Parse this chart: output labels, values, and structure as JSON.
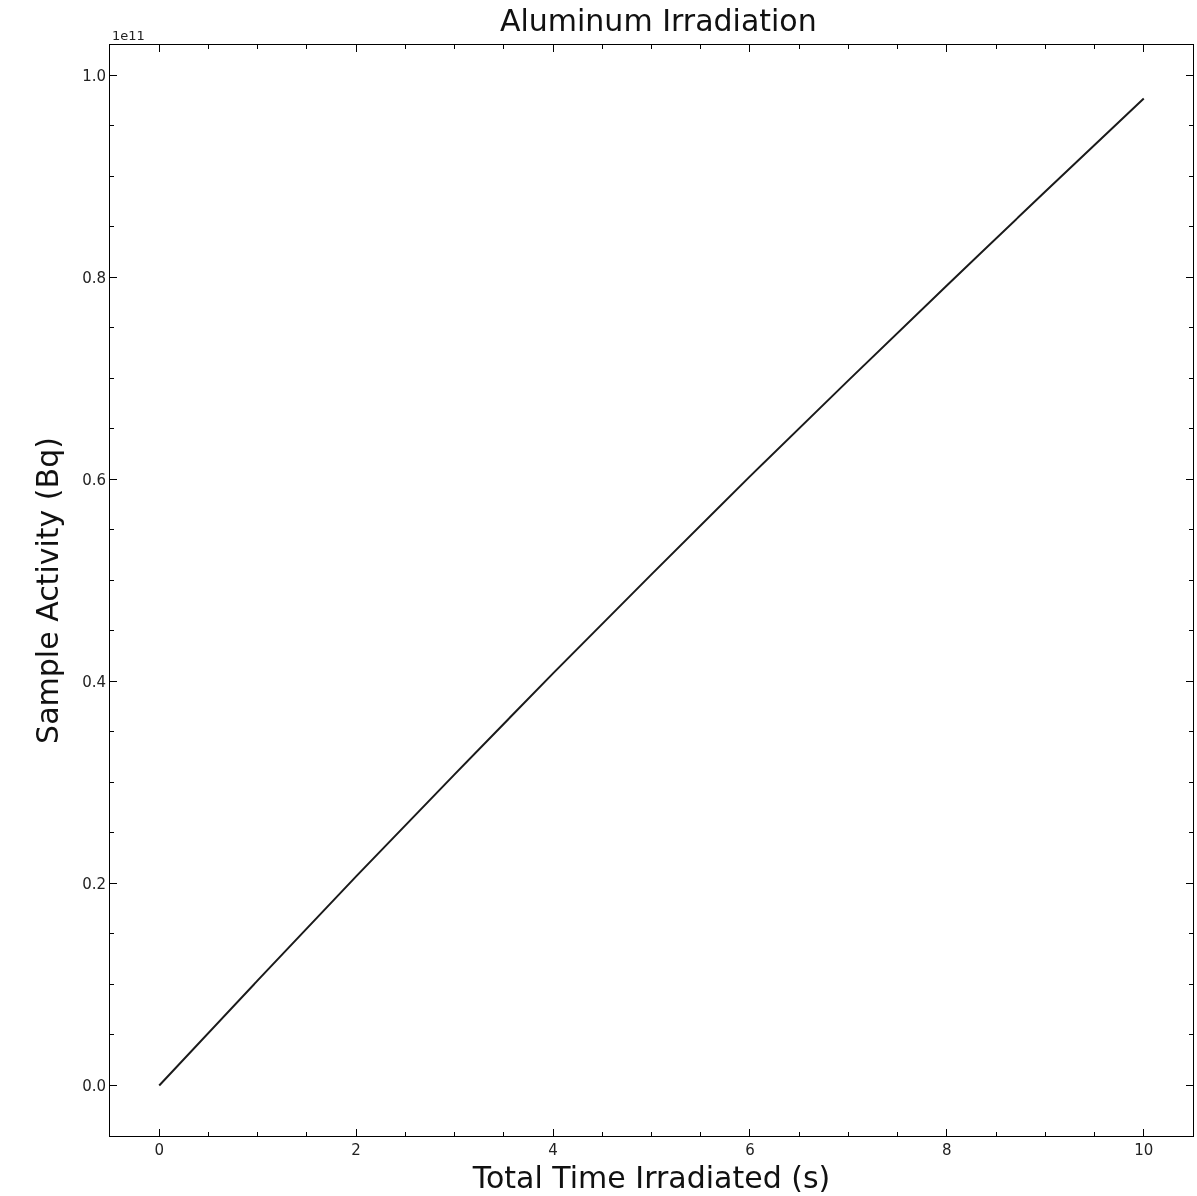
{
  "chart_data": {
    "type": "line",
    "title": "Aluminum Irradiation",
    "xlabel": "Total Time Irradiated (s)",
    "ylabel": "Sample Activity (Bq)",
    "annotations": [
      "1e11"
    ],
    "x": [
      0,
      1,
      2,
      3,
      4,
      5,
      6,
      7,
      8,
      9,
      10
    ],
    "series": [
      {
        "color": "#1a1a1a",
        "values": [
          0,
          0.104,
          0.207,
          0.308,
          0.408,
          0.506,
          0.603,
          0.698,
          0.792,
          0.885,
          0.977
        ]
      }
    ],
    "xlim": [
      -0.5,
      10.5
    ],
    "ylim": [
      -0.05,
      1.03
    ],
    "xticks": [
      0,
      2,
      4,
      6,
      8,
      10
    ],
    "yticks": [
      {
        "value": 0,
        "label": "0.0"
      },
      {
        "value": 0.2,
        "label": "0.2"
      },
      {
        "value": 0.4,
        "label": "0.4"
      },
      {
        "value": 0.6,
        "label": "0.6"
      },
      {
        "value": 0.8,
        "label": "0.8"
      },
      {
        "value": 1.0,
        "label": "1.0"
      }
    ],
    "marker": "none",
    "line_style": "solid"
  }
}
